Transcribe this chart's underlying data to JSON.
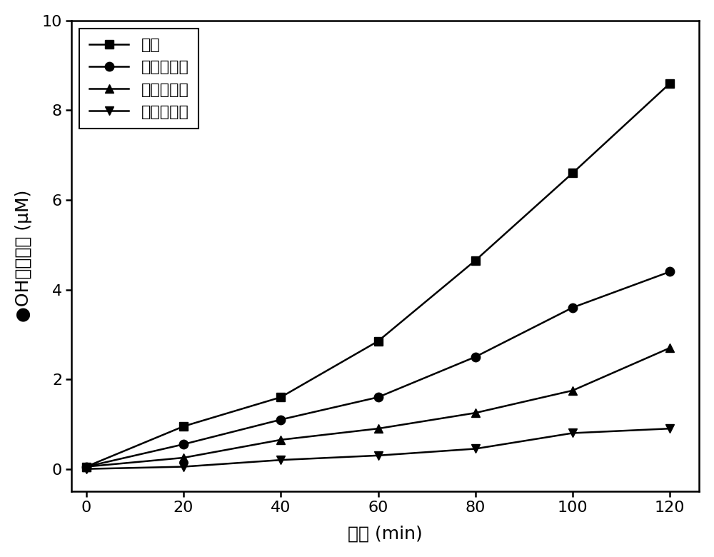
{
  "x": [
    0,
    20,
    40,
    60,
    80,
    100,
    120
  ],
  "series": [
    {
      "label": "整膜",
      "y": [
        0.05,
        0.95,
        1.6,
        2.85,
        4.65,
        6.6,
        8.6
      ],
      "marker": "s",
      "color": "#000000",
      "markersize": 9
    },
    {
      "label": "二分之一膜",
      "y": [
        0.05,
        0.55,
        1.1,
        1.6,
        2.5,
        3.6,
        4.4
      ],
      "marker": "o",
      "color": "#000000",
      "markersize": 9
    },
    {
      "label": "四分之一膜",
      "y": [
        0.05,
        0.25,
        0.65,
        0.9,
        1.25,
        1.75,
        2.7
      ],
      "marker": "^",
      "color": "#000000",
      "markersize": 9
    },
    {
      "label": "八分之一膜",
      "y": [
        0.0,
        0.05,
        0.2,
        0.3,
        0.45,
        0.8,
        0.9
      ],
      "marker": "v",
      "color": "#000000",
      "markersize": 9
    }
  ],
  "xlabel": "时间 (min)",
  "ylabel": "●OH累积浓度 (μM)",
  "xlim": [
    -3,
    126
  ],
  "ylim": [
    -0.5,
    10
  ],
  "yticks": [
    0,
    2,
    4,
    6,
    8,
    10
  ],
  "xticks": [
    0,
    20,
    40,
    60,
    80,
    100,
    120
  ],
  "legend_loc": "upper left",
  "linewidth": 1.8,
  "background_color": "#ffffff"
}
